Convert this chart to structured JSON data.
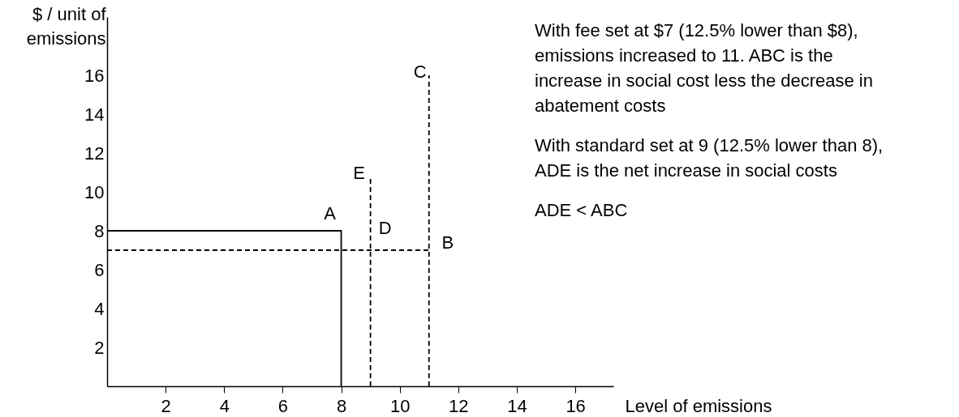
{
  "chart_data": {
    "type": "line",
    "xlabel": "Level of emissions",
    "ylabel": "$ / unit of emissions",
    "xlim": [
      0,
      17.3
    ],
    "ylim": [
      0,
      19
    ],
    "xticks": [
      2,
      4,
      6,
      8,
      10,
      12,
      14,
      16
    ],
    "yticks": [
      2,
      4,
      6,
      8,
      10,
      12,
      14,
      16
    ],
    "grid": false,
    "marker": "none",
    "series": [
      {
        "color": "#000000",
        "line_style": "solid",
        "x": [
          0,
          8,
          8
        ],
        "values": [
          8,
          8,
          0
        ]
      },
      {
        "color": "#000000",
        "line_style": "dashed",
        "x": [
          0,
          11
        ],
        "values": [
          7,
          7
        ]
      },
      {
        "color": "#000000",
        "line_style": "dashed",
        "x": [
          9,
          9
        ],
        "values": [
          0,
          10.7
        ]
      },
      {
        "color": "#000000",
        "line_style": "dashed",
        "x": [
          11,
          11
        ],
        "values": [
          0,
          16
        ]
      }
    ],
    "annotations": [
      {
        "text": "A",
        "x": 8,
        "y": 8
      },
      {
        "text": "B",
        "x": 11,
        "y": 7
      },
      {
        "text": "C",
        "x": 11,
        "y": 16
      },
      {
        "text": "D",
        "x": 9,
        "y": 8
      },
      {
        "text": "E",
        "x": 9,
        "y": 10.7
      },
      "With fee set at $7 (12.5% lower than $8), emissions increased to 11.  ABC is the increase in social cost less the decrease in abatement costs",
      "With standard set at 9 (12.5% lower than 8), ADE is the net increase in social costs",
      "ADE < ABC"
    ]
  }
}
